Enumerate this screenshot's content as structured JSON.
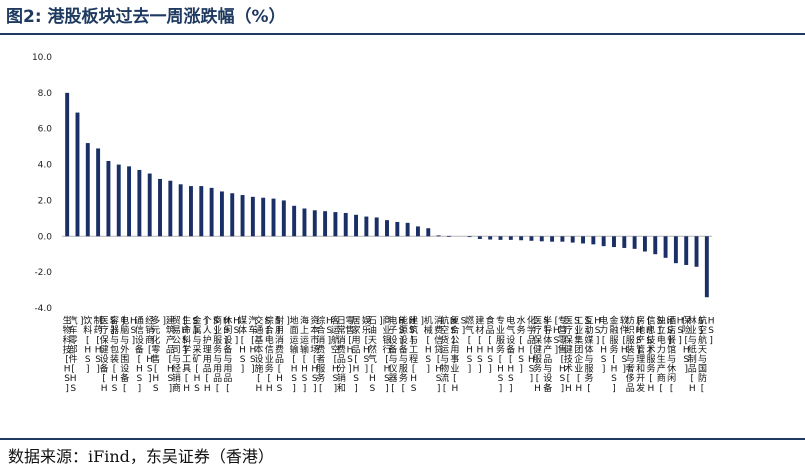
{
  "header": {
    "title": "图2:  港股板块过去一周涨跌幅（%）"
  },
  "footer": {
    "source": "数据来源：iFind，东吴证券（香港）"
  },
  "chart_data": {
    "type": "bar",
    "title": "",
    "xlabel": "",
    "ylabel": "",
    "ylim": [
      -4.0,
      10.0
    ],
    "yticks": [
      "-4.0",
      "-2.0",
      "0.0",
      "2.0",
      "4.0",
      "6.0",
      "8.0",
      "10.0"
    ],
    "bar_color": "#1a2f66",
    "categories": [
      "生物科技[HS]",
      "汽车零部件[HS]",
      "饮料[HS]",
      "制药[HS]",
      "医疗保健设备[HS]",
      "容器与包装[HS]",
      "电脑与外围设备[HS]",
      "通信设备[HS]",
      "经销商[HS]",
      "多元化零售[HS]",
      "建筑产品[HS]",
      "贸易公司与经销商[HS]",
      "生命科学工具[HS]",
      "金属与采矿[HS]",
      "个人护理用品[HS]",
      "商业服务与用品[HS]",
      "休闲设备与用品[HS]",
      "媒体[HS]",
      "汽车[HS]",
      "交通基本设施[HS]",
      "综合电信业务[HS]",
      "耐用消费品[HS]",
      "地面运输[HS]",
      "海上运输[HS]",
      "资本市场[HS]",
      "综合消费者服务[HS]",
      "客运航空[HS]",
      "日常消费品分销和零售[HS]",
      "居家用品[HS]",
      "娱乐[HS]",
      "石油天然气[HS]",
      "商业银行[HS]",
      "电子设备与仪器[HS]",
      "能源设备与服务[HS]",
      "建筑与工程[HS]",
      "机械[HS]",
      "消费信贷[HS]",
      "航空货运与物流[HS]",
      "复合公用事业[HS]",
      "燃气[HS]",
      "建材[HS]",
      "食品[HS]",
      "专业服务[HS]",
      "电气设备[HS]",
      "水务[HS]",
      "化学品[HS]",
      "医疗保健服务[HS]",
      "半导体产品与设备[HS]",
      "专营零售[HS]",
      "医疗保健技术[HS]",
      "工业集团企业[HS]",
      "互动媒体与服务[HS]",
      "电力[HS]",
      "金融服务[HS]",
      "软件[HS]",
      "纺织服装与奢侈品[HS]",
      "房地产管理和开发[HS]",
      "信息技术服务[HS]",
      "独立电力生产商[HS]",
      "酒店餐馆与休闲[HS]",
      "保险[HS]",
      "林业与纸制品[HS]",
      "航空航天与国防[HS]"
    ],
    "values": [
      8.0,
      6.9,
      5.2,
      4.9,
      4.2,
      4.0,
      3.9,
      3.7,
      3.5,
      3.2,
      3.1,
      2.9,
      2.8,
      2.8,
      2.7,
      2.5,
      2.4,
      2.3,
      2.2,
      2.15,
      2.1,
      2.0,
      1.7,
      1.55,
      1.45,
      1.4,
      1.35,
      1.3,
      1.2,
      1.1,
      1.05,
      0.9,
      0.8,
      0.75,
      0.55,
      0.45,
      0.05,
      0.02,
      0.0,
      -0.01,
      -0.15,
      -0.18,
      -0.2,
      -0.2,
      -0.22,
      -0.25,
      -0.28,
      -0.3,
      -0.3,
      -0.35,
      -0.4,
      -0.45,
      -0.55,
      -0.6,
      -0.65,
      -0.7,
      -0.85,
      -1.0,
      -1.2,
      -1.5,
      -1.6,
      -1.7,
      -3.4
    ]
  }
}
